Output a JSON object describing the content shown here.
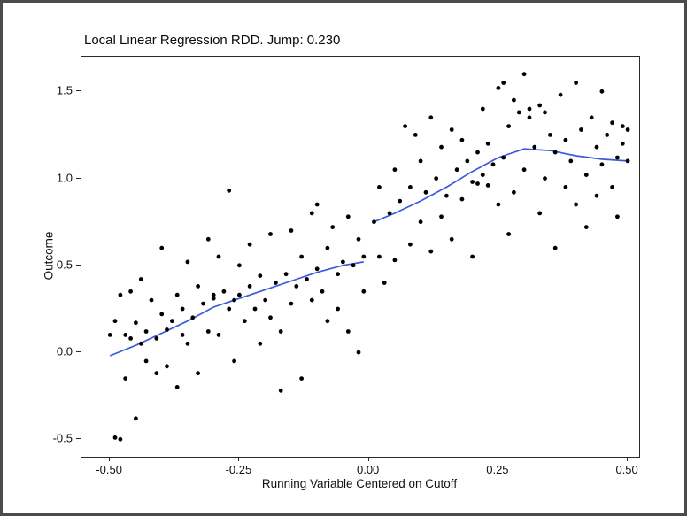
{
  "chart_data": {
    "type": "scatter",
    "title": "Local Linear Regression RDD. Jump: 0.230",
    "xlabel": "Running Variable Centered on Cutoff",
    "ylabel": "Outcome",
    "jump": 0.23,
    "cutoff": 0.0,
    "xlim": [
      -0.555,
      0.522
    ],
    "ylim": [
      -0.6,
      1.7
    ],
    "grid": "off",
    "legend": "none",
    "point_color": "#000000",
    "line_color": "#3b5bdb",
    "x_ticks": {
      "values": [
        -0.5,
        -0.25,
        0.0,
        0.25,
        0.5
      ],
      "labels": [
        "-0.50",
        "-0.25",
        "0.00",
        "0.25",
        "0.50"
      ]
    },
    "y_ticks": {
      "values": [
        -0.5,
        0.0,
        0.5,
        1.0,
        1.5
      ],
      "labels": [
        "-0.5",
        "0.0",
        "0.5",
        "1.0",
        "1.5"
      ]
    },
    "points": [
      [
        -0.5,
        0.1
      ],
      [
        -0.49,
        0.18
      ],
      [
        -0.49,
        -0.49
      ],
      [
        -0.48,
        -0.5
      ],
      [
        -0.48,
        0.33
      ],
      [
        -0.47,
        0.1
      ],
      [
        -0.47,
        -0.15
      ],
      [
        -0.46,
        0.35
      ],
      [
        -0.46,
        0.08
      ],
      [
        -0.45,
        0.17
      ],
      [
        -0.45,
        -0.38
      ],
      [
        -0.44,
        0.05
      ],
      [
        -0.44,
        0.42
      ],
      [
        -0.43,
        0.12
      ],
      [
        -0.43,
        -0.05
      ],
      [
        -0.42,
        0.3
      ],
      [
        -0.41,
        0.08
      ],
      [
        -0.41,
        -0.12
      ],
      [
        -0.4,
        0.22
      ],
      [
        -0.4,
        0.6
      ],
      [
        -0.39,
        0.13
      ],
      [
        -0.39,
        -0.08
      ],
      [
        -0.38,
        0.18
      ],
      [
        -0.37,
        0.33
      ],
      [
        -0.37,
        -0.2
      ],
      [
        -0.36,
        0.1
      ],
      [
        -0.36,
        0.25
      ],
      [
        -0.35,
        0.52
      ],
      [
        -0.35,
        0.05
      ],
      [
        -0.34,
        0.2
      ],
      [
        -0.33,
        0.38
      ],
      [
        -0.33,
        -0.12
      ],
      [
        -0.32,
        0.28
      ],
      [
        -0.31,
        0.65
      ],
      [
        -0.31,
        0.12
      ],
      [
        -0.3,
        0.31
      ],
      [
        -0.3,
        0.33
      ],
      [
        -0.29,
        0.55
      ],
      [
        -0.29,
        0.1
      ],
      [
        -0.28,
        0.35
      ],
      [
        -0.27,
        0.93
      ],
      [
        -0.27,
        0.25
      ],
      [
        -0.26,
        0.3
      ],
      [
        -0.26,
        -0.05
      ],
      [
        -0.25,
        0.33
      ],
      [
        -0.25,
        0.5
      ],
      [
        -0.24,
        0.18
      ],
      [
        -0.23,
        0.38
      ],
      [
        -0.23,
        0.62
      ],
      [
        -0.22,
        0.25
      ],
      [
        -0.21,
        0.05
      ],
      [
        -0.21,
        0.44
      ],
      [
        -0.2,
        0.3
      ],
      [
        -0.19,
        0.68
      ],
      [
        -0.19,
        0.2
      ],
      [
        -0.18,
        0.4
      ],
      [
        -0.17,
        0.12
      ],
      [
        -0.17,
        -0.22
      ],
      [
        -0.16,
        0.45
      ],
      [
        -0.15,
        0.7
      ],
      [
        -0.15,
        0.28
      ],
      [
        -0.14,
        0.38
      ],
      [
        -0.13,
        0.55
      ],
      [
        -0.13,
        -0.15
      ],
      [
        -0.12,
        0.42
      ],
      [
        -0.11,
        0.8
      ],
      [
        -0.11,
        0.3
      ],
      [
        -0.1,
        0.48
      ],
      [
        -0.1,
        0.85
      ],
      [
        -0.09,
        0.35
      ],
      [
        -0.08,
        0.6
      ],
      [
        -0.08,
        0.18
      ],
      [
        -0.07,
        0.72
      ],
      [
        -0.06,
        0.45
      ],
      [
        -0.06,
        0.25
      ],
      [
        -0.05,
        0.52
      ],
      [
        -0.04,
        0.78
      ],
      [
        -0.04,
        0.12
      ],
      [
        -0.03,
        0.5
      ],
      [
        -0.02,
        0.65
      ],
      [
        -0.02,
        0.0
      ],
      [
        -0.01,
        0.55
      ],
      [
        -0.01,
        0.35
      ],
      [
        0.01,
        0.75
      ],
      [
        0.02,
        0.55
      ],
      [
        0.02,
        0.95
      ],
      [
        0.03,
        0.4
      ],
      [
        0.04,
        0.8
      ],
      [
        0.05,
        1.05
      ],
      [
        0.05,
        0.53
      ],
      [
        0.06,
        0.87
      ],
      [
        0.07,
        1.3
      ],
      [
        0.08,
        0.62
      ],
      [
        0.08,
        0.95
      ],
      [
        0.09,
        1.25
      ],
      [
        0.1,
        0.75
      ],
      [
        0.1,
        1.1
      ],
      [
        0.11,
        0.92
      ],
      [
        0.12,
        1.35
      ],
      [
        0.12,
        0.58
      ],
      [
        0.13,
        1.0
      ],
      [
        0.14,
        0.78
      ],
      [
        0.14,
        1.18
      ],
      [
        0.15,
        0.9
      ],
      [
        0.16,
        1.28
      ],
      [
        0.16,
        0.65
      ],
      [
        0.17,
        1.05
      ],
      [
        0.18,
        0.88
      ],
      [
        0.18,
        1.22
      ],
      [
        0.19,
        1.1
      ],
      [
        0.2,
        0.55
      ],
      [
        0.2,
        0.98
      ],
      [
        0.21,
        1.15
      ],
      [
        0.21,
        0.97
      ],
      [
        0.22,
        1.02
      ],
      [
        0.22,
        1.4
      ],
      [
        0.23,
        0.96
      ],
      [
        0.23,
        1.2
      ],
      [
        0.24,
        1.08
      ],
      [
        0.25,
        1.52
      ],
      [
        0.25,
        0.85
      ],
      [
        0.26,
        1.55
      ],
      [
        0.26,
        1.12
      ],
      [
        0.27,
        0.68
      ],
      [
        0.27,
        1.3
      ],
      [
        0.28,
        1.45
      ],
      [
        0.28,
        0.92
      ],
      [
        0.29,
        1.38
      ],
      [
        0.3,
        1.6
      ],
      [
        0.3,
        1.05
      ],
      [
        0.31,
        1.4
      ],
      [
        0.31,
        1.35
      ],
      [
        0.32,
        1.18
      ],
      [
        0.33,
        0.8
      ],
      [
        0.33,
        1.42
      ],
      [
        0.34,
        1.0
      ],
      [
        0.34,
        1.38
      ],
      [
        0.35,
        1.25
      ],
      [
        0.36,
        0.6
      ],
      [
        0.36,
        1.15
      ],
      [
        0.37,
        1.48
      ],
      [
        0.38,
        0.95
      ],
      [
        0.38,
        1.22
      ],
      [
        0.39,
        1.1
      ],
      [
        0.4,
        1.55
      ],
      [
        0.4,
        0.85
      ],
      [
        0.41,
        1.28
      ],
      [
        0.42,
        1.02
      ],
      [
        0.42,
        0.72
      ],
      [
        0.43,
        1.35
      ],
      [
        0.44,
        1.18
      ],
      [
        0.44,
        0.9
      ],
      [
        0.45,
        1.5
      ],
      [
        0.45,
        1.08
      ],
      [
        0.46,
        1.25
      ],
      [
        0.47,
        0.95
      ],
      [
        0.47,
        1.32
      ],
      [
        0.48,
        1.12
      ],
      [
        0.48,
        0.78
      ],
      [
        0.49,
        1.3
      ],
      [
        0.49,
        1.2
      ],
      [
        0.5,
        1.28
      ],
      [
        0.5,
        1.1
      ]
    ],
    "series": [
      {
        "name": "local-linear-fit-left",
        "points": [
          [
            -0.5,
            -0.02
          ],
          [
            -0.45,
            0.04
          ],
          [
            -0.4,
            0.11
          ],
          [
            -0.35,
            0.18
          ],
          [
            -0.3,
            0.26
          ],
          [
            -0.25,
            0.31
          ],
          [
            -0.2,
            0.36
          ],
          [
            -0.15,
            0.41
          ],
          [
            -0.1,
            0.46
          ],
          [
            -0.05,
            0.5
          ],
          [
            -0.01,
            0.52
          ]
        ]
      },
      {
        "name": "local-linear-fit-right",
        "points": [
          [
            0.01,
            0.75
          ],
          [
            0.05,
            0.8
          ],
          [
            0.1,
            0.87
          ],
          [
            0.15,
            0.95
          ],
          [
            0.2,
            1.04
          ],
          [
            0.25,
            1.12
          ],
          [
            0.3,
            1.17
          ],
          [
            0.35,
            1.16
          ],
          [
            0.4,
            1.13
          ],
          [
            0.45,
            1.11
          ],
          [
            0.5,
            1.1
          ]
        ]
      }
    ]
  }
}
